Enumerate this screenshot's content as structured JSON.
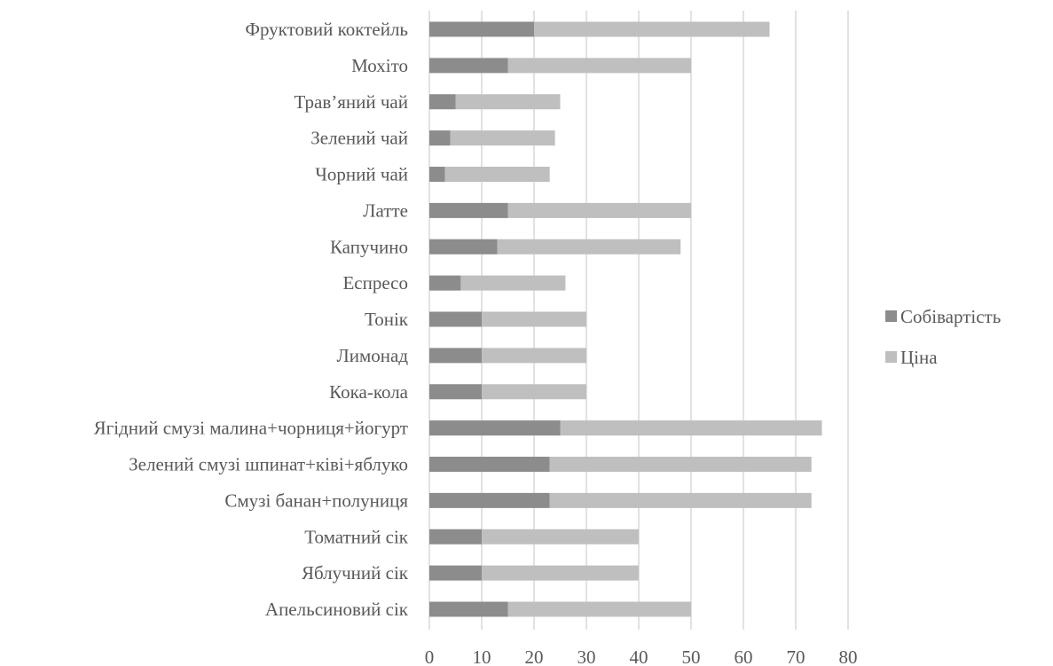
{
  "chart_data": {
    "type": "bar",
    "orientation": "horizontal",
    "stacked": true,
    "categories": [
      "Апельсиновий сік",
      "Яблучний сік",
      "Томатний сік",
      "Смузі банан+полуниця",
      "Зелений смузі шпинат+ківі+яблуко",
      "Ягідний смузі малина+чорниця+йогурт",
      "Кока-кола",
      "Лимонад",
      "Тонік",
      "Еспресо",
      "Капучино",
      "Латте",
      "Чорний чай",
      "Зелений чай",
      "Трав’яний чай",
      "Мохіто",
      "Фруктовий коктейль"
    ],
    "series": [
      {
        "name": "Собівартість",
        "color": "#8c8c8c",
        "values": [
          15,
          10,
          10,
          23,
          23,
          25,
          10,
          10,
          10,
          6,
          13,
          15,
          3,
          4,
          5,
          15,
          20
        ]
      },
      {
        "name": "Ціна",
        "color": "#bfbfbf",
        "values": [
          35,
          30,
          30,
          50,
          50,
          50,
          20,
          20,
          20,
          20,
          35,
          35,
          20,
          20,
          20,
          35,
          45
        ]
      }
    ],
    "xlim": [
      0,
      80
    ],
    "xticks": [
      "0",
      "10",
      "20",
      "30",
      "40",
      "50",
      "60",
      "70",
      "80"
    ],
    "grid": true,
    "legend_position": "right"
  }
}
